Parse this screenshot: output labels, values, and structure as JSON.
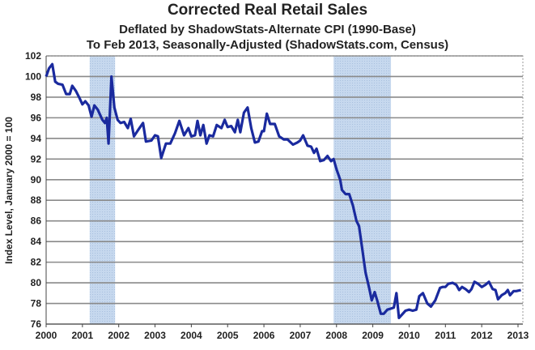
{
  "chart_data": {
    "type": "line",
    "title": "Corrected Real Retail Sales",
    "subtitle": "Deflated by ShadowStats-Alternate CPI (1990-Base)",
    "subtitle2": "To Feb 2013, Seasonally-Adjusted (ShadowStats.com, Census)",
    "xlabel": "",
    "ylabel": "Index Level, January 2000 = 100",
    "xlim": [
      2000,
      2013.1
    ],
    "ylim": [
      76,
      102
    ],
    "yticks": [
      76,
      78,
      80,
      82,
      84,
      86,
      88,
      90,
      92,
      94,
      96,
      98,
      100,
      102
    ],
    "xticks": [
      "2000",
      "2001",
      "2002",
      "2003",
      "2004",
      "2005",
      "2006",
      "2007",
      "2008",
      "2009",
      "2010",
      "2011",
      "2012",
      "2013"
    ],
    "grid": true,
    "line_color": "#1a2a9e",
    "recession_color": "#c6d8ee",
    "recessions": [
      [
        2001.2,
        2001.9
      ],
      [
        2007.92,
        2009.5
      ]
    ],
    "series": [
      {
        "name": "Corrected Real Retail Sales",
        "x": [
          2000.0,
          2000.08,
          2000.17,
          2000.25,
          2000.33,
          2000.45,
          2000.55,
          2000.65,
          2000.72,
          2000.82,
          2000.92,
          2001.0,
          2001.08,
          2001.17,
          2001.25,
          2001.33,
          2001.42,
          2001.55,
          2001.62,
          2001.67,
          2001.72,
          2001.8,
          2001.88,
          2001.97,
          2002.05,
          2002.15,
          2002.25,
          2002.33,
          2002.42,
          2002.55,
          2002.67,
          2002.75,
          2002.9,
          2003.0,
          2003.08,
          2003.17,
          2003.3,
          2003.42,
          2003.55,
          2003.67,
          2003.8,
          2003.92,
          2004.0,
          2004.1,
          2004.17,
          2004.25,
          2004.33,
          2004.42,
          2004.5,
          2004.6,
          2004.7,
          2004.83,
          2004.92,
          2005.0,
          2005.1,
          2005.2,
          2005.28,
          2005.35,
          2005.45,
          2005.55,
          2005.65,
          2005.75,
          2005.85,
          2005.95,
          2006.0,
          2006.08,
          2006.17,
          2006.3,
          2006.42,
          2006.55,
          2006.65,
          2006.8,
          2006.92,
          2007.0,
          2007.08,
          2007.2,
          2007.3,
          2007.38,
          2007.45,
          2007.55,
          2007.65,
          2007.75,
          2007.85,
          2007.92,
          2008.0,
          2008.1,
          2008.15,
          2008.25,
          2008.35,
          2008.45,
          2008.55,
          2008.62,
          2008.7,
          2008.8,
          2008.9,
          2008.97,
          2009.05,
          2009.12,
          2009.22,
          2009.3,
          2009.4,
          2009.5,
          2009.58,
          2009.65,
          2009.72,
          2009.8,
          2009.9,
          2010.0,
          2010.1,
          2010.2,
          2010.28,
          2010.38,
          2010.5,
          2010.6,
          2010.72,
          2010.85,
          2010.92,
          2011.0,
          2011.08,
          2011.2,
          2011.3,
          2011.38,
          2011.46,
          2011.55,
          2011.65,
          2011.72,
          2011.8,
          2011.9,
          2012.0,
          2012.1,
          2012.2,
          2012.3,
          2012.38,
          2012.45,
          2012.55,
          2012.65,
          2012.72,
          2012.78,
          2012.88,
          2012.95,
          2013.08
        ],
        "values": [
          100,
          100.8,
          101.2,
          99.5,
          99.3,
          99.2,
          98.3,
          98.3,
          99.1,
          98.6,
          97.9,
          97.3,
          97.6,
          97.2,
          96.1,
          97.2,
          96.8,
          95.8,
          95.5,
          96.0,
          93.5,
          100.0,
          97.0,
          95.8,
          95.5,
          95.6,
          95.0,
          95.9,
          94.2,
          94.9,
          95.5,
          93.7,
          93.8,
          94.3,
          94.2,
          92.1,
          93.5,
          93.5,
          94.5,
          95.7,
          94.3,
          95.0,
          94.2,
          94.3,
          95.7,
          94.3,
          95.3,
          93.5,
          94.3,
          94.2,
          95.3,
          95.0,
          95.8,
          95.1,
          95.2,
          94.6,
          95.8,
          94.6,
          96.5,
          97.0,
          95.0,
          93.6,
          93.7,
          94.7,
          94.7,
          96.4,
          95.4,
          95.4,
          94.2,
          93.9,
          93.9,
          93.4,
          93.6,
          93.8,
          94.3,
          93.3,
          93.2,
          92.6,
          93.0,
          91.8,
          91.9,
          92.3,
          91.8,
          92.0,
          91.0,
          90.0,
          89.0,
          88.6,
          88.6,
          87.5,
          86.0,
          85.5,
          83.5,
          81.0,
          79.5,
          78.3,
          79.1,
          78.3,
          77.0,
          77.0,
          77.4,
          77.5,
          77.6,
          79.0,
          76.6,
          76.9,
          77.3,
          77.4,
          77.3,
          77.4,
          78.7,
          79.0,
          78.0,
          77.7,
          78.3,
          79.5,
          79.6,
          79.6,
          79.9,
          80.0,
          79.8,
          79.3,
          79.6,
          79.4,
          79.1,
          79.4,
          80.1,
          79.9,
          79.6,
          79.8,
          80.1,
          79.4,
          79.3,
          78.4,
          78.8,
          79.0,
          79.3,
          78.8,
          79.2,
          79.2,
          79.3
        ]
      }
    ]
  }
}
